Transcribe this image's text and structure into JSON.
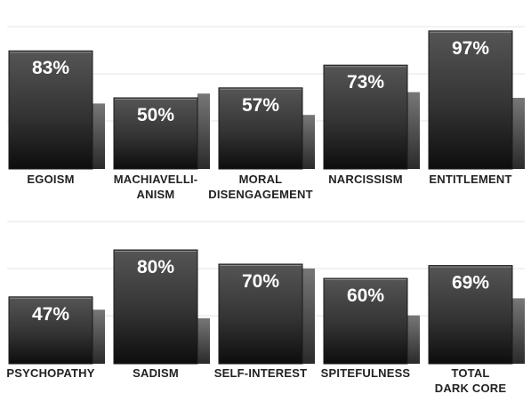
{
  "chart_data": {
    "type": "bar",
    "title": "",
    "xlabel": "",
    "ylabel": "",
    "ylim": [
      0,
      100
    ],
    "grid": true,
    "panels": [
      {
        "categories": [
          [
            "EGOISM"
          ],
          [
            "MACHIAVELLI-",
            "ANISM"
          ],
          [
            "MORAL",
            "DISENGAGEMENT"
          ],
          [
            "NARCISSISM"
          ],
          [
            "ENTITLEMENT"
          ]
        ],
        "series": [
          {
            "values": [
              83,
              50,
              57,
              73,
              97
            ],
            "value_labels": [
              "83%",
              "50%",
              "57%",
              "73%",
              "97%"
            ],
            "color": "#1f1f1f"
          },
          {
            "values": [
              46,
              53,
              38,
              54,
              50
            ],
            "color": "#6a6a6a"
          }
        ]
      },
      {
        "categories": [
          [
            "PSYCHOPATHY"
          ],
          [
            "SADISM"
          ],
          [
            "SELF-INTEREST"
          ],
          [
            "SPITEFULNESS"
          ],
          [
            "TOTAL",
            "DARK CORE"
          ]
        ],
        "series": [
          {
            "values": [
              47,
              80,
              70,
              60,
              69
            ],
            "value_labels": [
              "47%",
              "80%",
              "70%",
              "60%",
              "69%"
            ],
            "color": "#1f1f1f"
          },
          {
            "values": [
              38,
              32,
              67,
              34,
              46
            ],
            "color": "#6a6a6a"
          }
        ]
      }
    ]
  }
}
